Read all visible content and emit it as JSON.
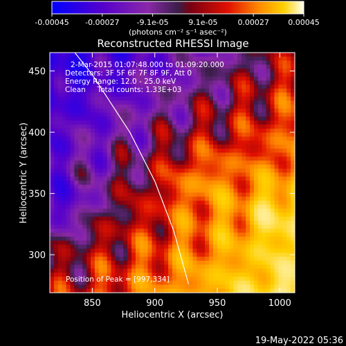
{
  "chart_data": {
    "type": "heatmap",
    "title": "Reconstructed RHESSI Image",
    "xlabel": "Heliocentric X (arcsec)",
    "ylabel": "Heliocentric Y (arcsec)",
    "xlim": [
      816,
      1012
    ],
    "ylim": [
      269,
      465
    ],
    "x_ticks": [
      850,
      900,
      950,
      1000
    ],
    "y_ticks": [
      300,
      350,
      400,
      450
    ],
    "colorbar": {
      "ticks": [
        "-0.00045",
        "-0.00027",
        "-9.1e-05",
        "9.1e-05",
        "0.00027",
        "0.00045"
      ],
      "unit_label": "(photons cm⁻² s⁻¹ asec⁻²)",
      "range": [
        -0.00045,
        0.00045
      ]
    },
    "annotations": [
      "2-Mar-2015 01:07:48.000 to 01:09:20.000",
      "Detectors: 3F 5F 6F 7F 8F 9F, Att 0",
      "Energy Range: 12.0 - 25.0 keV",
      "Clean     Total counts: 1.33E+03"
    ],
    "peak_label": "Position of Peak = [997,334]",
    "peak_position": [
      997,
      334
    ],
    "limb_curve": [
      [
        836,
        465
      ],
      [
        850,
        447
      ],
      [
        880,
        400
      ],
      [
        900,
        360
      ],
      [
        915,
        320
      ],
      [
        927,
        276
      ]
    ],
    "grid": false,
    "timestamp": "19-May-2022 05:36"
  }
}
